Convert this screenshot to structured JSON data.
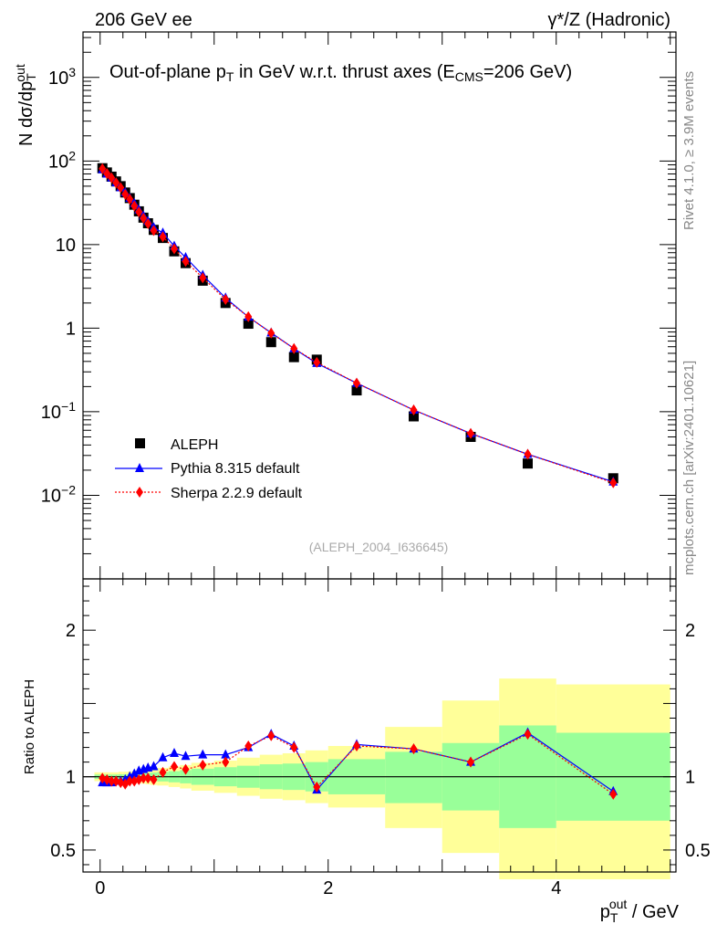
{
  "header": {
    "left": "206 GeV ee",
    "right": "γ*/Z (Hadronic)"
  },
  "side": {
    "rivet": "Rivet 4.1.0, ≥ 3.9M events",
    "mcplots": "mcplots.cern.ch [arXiv:2401.10621]"
  },
  "chart_data": [
    {
      "type": "scatter",
      "title": "Out-of-plane pT in GeV w.r.t. thrust axes (ECMS=206 GeV)",
      "ylabel": "N dσ/dpT^out",
      "yscale": "log",
      "ylim": [
        0.001,
        3500
      ],
      "xlim": [
        -0.15,
        5.05
      ],
      "yticks": [
        "10^-2",
        "10^-1",
        "1",
        "10",
        "10^2",
        "10^3"
      ],
      "legend": [
        "ALEPH",
        "Pythia 8.315 default",
        "Sherpa 2.2.9 default"
      ],
      "analysis_tag": "(ALEPH_2004_I636645)",
      "x": [
        0.02,
        0.06,
        0.1,
        0.14,
        0.18,
        0.22,
        0.26,
        0.3,
        0.34,
        0.38,
        0.42,
        0.47,
        0.55,
        0.65,
        0.75,
        0.9,
        1.1,
        1.3,
        1.5,
        1.7,
        1.9,
        2.25,
        2.75,
        3.25,
        3.75,
        4.5
      ],
      "series": [
        {
          "name": "ALEPH",
          "values": [
            82,
            73,
            65,
            57,
            50,
            42,
            36,
            30,
            25,
            21,
            18,
            15,
            12,
            8.3,
            6.0,
            3.7,
            2.0,
            1.13,
            0.68,
            0.45,
            0.42,
            0.18,
            0.088,
            0.05,
            0.024,
            0.016
          ]
        },
        {
          "name": "Pythia 8.315 default",
          "values": [
            79,
            70,
            63,
            55,
            48,
            42,
            36,
            31,
            26,
            22,
            19,
            16,
            13.8,
            9.6,
            7.0,
            4.3,
            2.3,
            1.36,
            0.88,
            0.57,
            0.38,
            0.22,
            0.105,
            0.055,
            0.031,
            0.0145
          ]
        },
        {
          "name": "Sherpa 2.2.9 default",
          "values": [
            81,
            71,
            63,
            55,
            48,
            40,
            35,
            29,
            24.6,
            20.7,
            17.8,
            14.7,
            12.4,
            8.9,
            6.3,
            4.0,
            2.2,
            1.37,
            0.87,
            0.57,
            0.39,
            0.22,
            0.105,
            0.055,
            0.031,
            0.0141
          ]
        }
      ]
    },
    {
      "type": "scatter",
      "ylabel": "Ratio to ALEPH",
      "xlabel": "pT^out / GeV",
      "ylim": [
        0.35,
        2.35
      ],
      "xlim": [
        -0.15,
        5.05
      ],
      "xticks": [
        "0",
        "2",
        "4"
      ],
      "yticks": [
        "0.5",
        "1",
        "2"
      ],
      "x": [
        0.02,
        0.06,
        0.1,
        0.14,
        0.18,
        0.22,
        0.26,
        0.3,
        0.34,
        0.38,
        0.42,
        0.47,
        0.55,
        0.65,
        0.75,
        0.9,
        1.1,
        1.3,
        1.5,
        1.7,
        1.9,
        2.25,
        2.75,
        3.25,
        3.75,
        4.5
      ],
      "series": [
        {
          "name": "Pythia 8.315 default",
          "values": [
            0.96,
            0.96,
            0.96,
            0.97,
            0.97,
            0.98,
            1.0,
            1.02,
            1.04,
            1.05,
            1.06,
            1.07,
            1.13,
            1.16,
            1.14,
            1.15,
            1.15,
            1.2,
            1.29,
            1.21,
            0.91,
            1.22,
            1.19,
            1.1,
            1.3,
            0.9
          ]
        },
        {
          "name": "Sherpa 2.2.9 default",
          "values": [
            0.99,
            0.98,
            0.97,
            0.97,
            0.96,
            0.95,
            0.97,
            0.97,
            0.98,
            0.99,
            0.99,
            0.98,
            1.03,
            1.07,
            1.05,
            1.08,
            1.1,
            1.21,
            1.28,
            1.2,
            0.93,
            1.21,
            1.19,
            1.1,
            1.29,
            0.88
          ]
        }
      ],
      "bands": [
        {
          "x0": -0.05,
          "x1": 0.08,
          "g": [
            0.985,
            1.015
          ],
          "y": [
            0.97,
            1.03
          ]
        },
        {
          "x0": 0.08,
          "x1": 0.16,
          "g": [
            0.985,
            1.015
          ],
          "y": [
            0.97,
            1.03
          ]
        },
        {
          "x0": 0.16,
          "x1": 0.2,
          "g": [
            0.983,
            1.017
          ],
          "y": [
            0.966,
            1.034
          ]
        },
        {
          "x0": 0.2,
          "x1": 0.24,
          "g": [
            0.983,
            1.017
          ],
          "y": [
            0.966,
            1.034
          ]
        },
        {
          "x0": 0.24,
          "x1": 0.28,
          "g": [
            0.982,
            1.018
          ],
          "y": [
            0.964,
            1.036
          ]
        },
        {
          "x0": 0.28,
          "x1": 0.32,
          "g": [
            0.98,
            1.02
          ],
          "y": [
            0.96,
            1.04
          ]
        },
        {
          "x0": 0.32,
          "x1": 0.36,
          "g": [
            0.978,
            1.022
          ],
          "y": [
            0.956,
            1.044
          ]
        },
        {
          "x0": 0.36,
          "x1": 0.4,
          "g": [
            0.976,
            1.024
          ],
          "y": [
            0.952,
            1.048
          ]
        },
        {
          "x0": 0.4,
          "x1": 0.44,
          "g": [
            0.974,
            1.026
          ],
          "y": [
            0.948,
            1.052
          ]
        },
        {
          "x0": 0.44,
          "x1": 0.5,
          "g": [
            0.972,
            1.028
          ],
          "y": [
            0.944,
            1.056
          ]
        },
        {
          "x0": 0.5,
          "x1": 0.6,
          "g": [
            0.968,
            1.032
          ],
          "y": [
            0.94,
            1.06
          ]
        },
        {
          "x0": 0.6,
          "x1": 0.7,
          "g": [
            0.962,
            1.038
          ],
          "y": [
            0.93,
            1.07
          ]
        },
        {
          "x0": 0.7,
          "x1": 0.8,
          "g": [
            0.955,
            1.045
          ],
          "y": [
            0.92,
            1.08
          ]
        },
        {
          "x0": 0.8,
          "x1": 1.0,
          "g": [
            0.945,
            1.055
          ],
          "y": [
            0.905,
            1.095
          ]
        },
        {
          "x0": 1.0,
          "x1": 1.2,
          "g": [
            0.935,
            1.065
          ],
          "y": [
            0.89,
            1.11
          ]
        },
        {
          "x0": 1.2,
          "x1": 1.4,
          "g": [
            0.925,
            1.075
          ],
          "y": [
            0.87,
            1.13
          ]
        },
        {
          "x0": 1.4,
          "x1": 1.6,
          "g": [
            0.915,
            1.085
          ],
          "y": [
            0.85,
            1.15
          ]
        },
        {
          "x0": 1.6,
          "x1": 1.8,
          "g": [
            0.91,
            1.09
          ],
          "y": [
            0.84,
            1.16
          ]
        },
        {
          "x0": 1.8,
          "x1": 2.0,
          "g": [
            0.9,
            1.1
          ],
          "y": [
            0.82,
            1.18
          ]
        },
        {
          "x0": 2.0,
          "x1": 2.5,
          "g": [
            0.88,
            1.12
          ],
          "y": [
            0.79,
            1.21
          ]
        },
        {
          "x0": 2.5,
          "x1": 3.0,
          "g": [
            0.82,
            1.17
          ],
          "y": [
            0.65,
            1.34
          ]
        },
        {
          "x0": 3.0,
          "x1": 3.5,
          "g": [
            0.77,
            1.23
          ],
          "y": [
            0.48,
            1.52
          ]
        },
        {
          "x0": 3.5,
          "x1": 4.0,
          "g": [
            0.65,
            1.35
          ],
          "y": [
            0.3,
            1.67
          ]
        },
        {
          "x0": 4.0,
          "x1": 5.0,
          "g": [
            0.7,
            1.3
          ],
          "y": [
            0.3,
            1.63
          ]
        }
      ]
    }
  ]
}
